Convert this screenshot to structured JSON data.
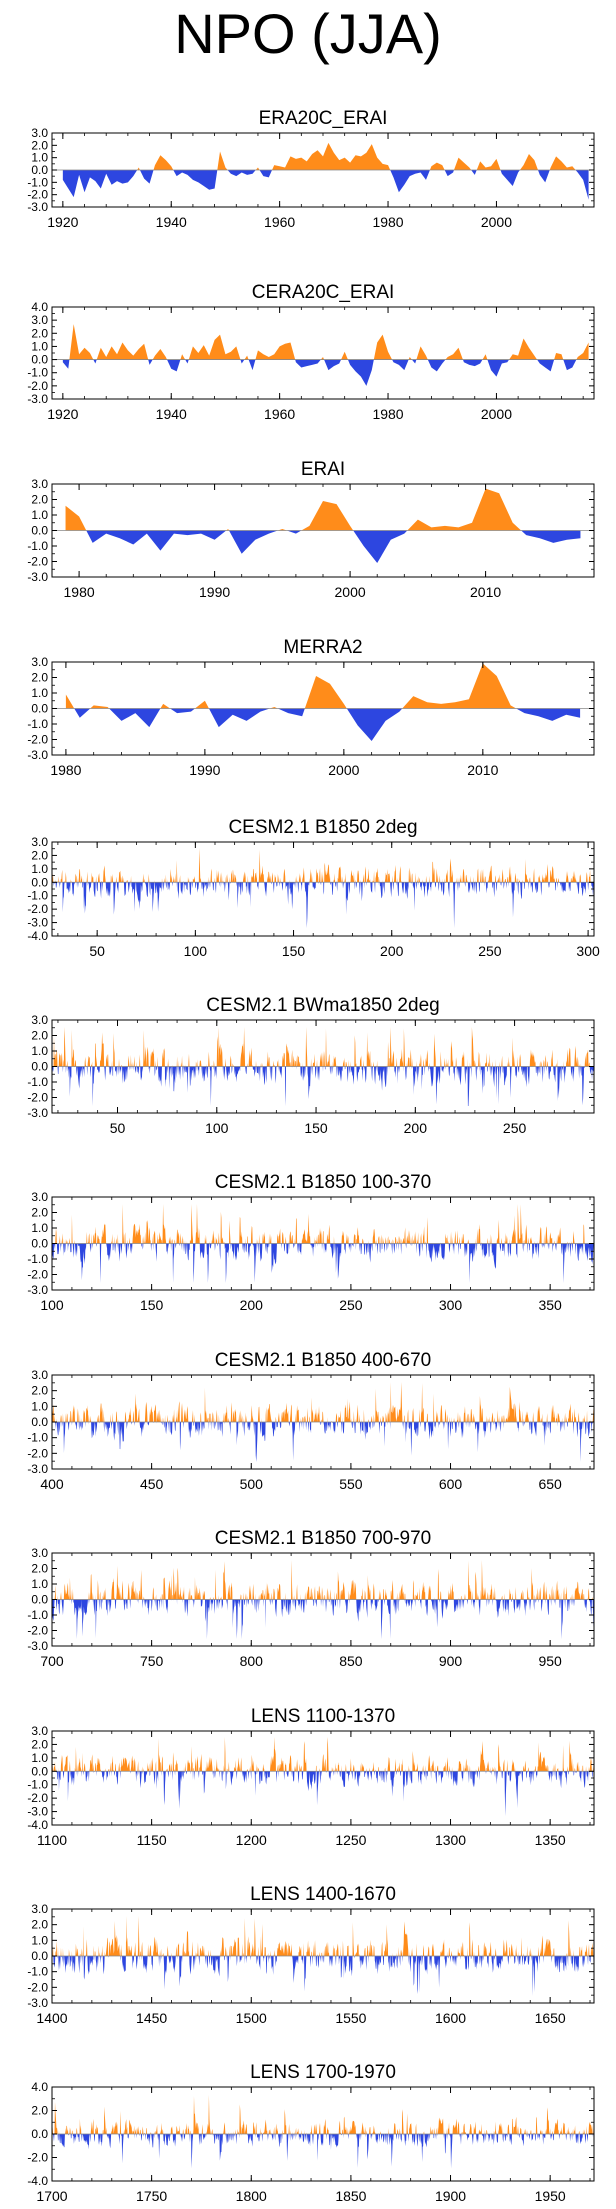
{
  "title": "NPO (JJA)",
  "colors": {
    "positive": "#ff8c1a",
    "negative": "#2d46e0",
    "axis": "#000000"
  },
  "chart_data": [
    {
      "type": "area",
      "title": "ERA20C_ERAI",
      "xlim": [
        1918,
        2018
      ],
      "ylim": [
        -3.0,
        3.0
      ],
      "xticks": [
        1920,
        1940,
        1960,
        1980,
        2000
      ],
      "yticks": [
        "3.0",
        "2.0",
        "1.0",
        "0.0",
        "-1.0",
        "-2.0",
        "-3.0"
      ],
      "series_style": "annual",
      "x": [
        1920,
        1921,
        1922,
        1923,
        1924,
        1925,
        1926,
        1927,
        1928,
        1929,
        1930,
        1931,
        1932,
        1933,
        1934,
        1935,
        1936,
        1937,
        1938,
        1939,
        1940,
        1941,
        1942,
        1943,
        1944,
        1945,
        1946,
        1947,
        1948,
        1949,
        1950,
        1951,
        1952,
        1953,
        1954,
        1955,
        1956,
        1957,
        1958,
        1959,
        1960,
        1961,
        1962,
        1963,
        1964,
        1965,
        1966,
        1967,
        1968,
        1969,
        1970,
        1971,
        1972,
        1973,
        1974,
        1975,
        1976,
        1977,
        1978,
        1979,
        1980,
        1981,
        1982,
        1983,
        1984,
        1985,
        1986,
        1987,
        1988,
        1989,
        1990,
        1991,
        1992,
        1993,
        1994,
        1995,
        1996,
        1997,
        1998,
        1999,
        2000,
        2001,
        2002,
        2003,
        2004,
        2005,
        2006,
        2007,
        2008,
        2009,
        2010,
        2011,
        2012,
        2013,
        2014,
        2015,
        2016,
        2017
      ],
      "values": [
        -0.8,
        -1.5,
        -2.2,
        -0.4,
        -1.8,
        -0.6,
        -0.9,
        -1.5,
        -0.3,
        -1.2,
        -0.9,
        -1.1,
        -1.0,
        -0.5,
        0.2,
        -0.7,
        -1.1,
        0.4,
        1.2,
        0.8,
        0.3,
        -0.5,
        -0.2,
        -0.4,
        -0.8,
        -1.0,
        -1.3,
        -1.6,
        -1.5,
        1.5,
        0.2,
        -0.3,
        -0.5,
        -0.2,
        -0.4,
        -0.3,
        0.2,
        -0.5,
        -0.6,
        0.4,
        0.3,
        0.2,
        1.1,
        0.9,
        1.0,
        0.7,
        1.3,
        1.6,
        1.1,
        2.2,
        1.4,
        0.8,
        1.0,
        0.6,
        1.2,
        1.1,
        1.4,
        2.1,
        1.0,
        0.5,
        0.4,
        -0.6,
        -1.8,
        -1.2,
        -0.5,
        -0.3,
        -0.2,
        -0.8,
        0.3,
        0.6,
        0.4,
        -0.5,
        -0.2,
        1.0,
        0.6,
        0.2,
        -0.4,
        0.7,
        0.2,
        0.3,
        0.9,
        -0.3,
        -0.8,
        -1.3,
        -0.2,
        0.4,
        1.3,
        0.8,
        -0.4,
        -1.0,
        0.2,
        1.1,
        0.7,
        0.2,
        0.3,
        -0.2,
        -0.8,
        -2.4
      ]
    },
    {
      "type": "area",
      "title": "CERA20C_ERAI",
      "xlim": [
        1918,
        2018
      ],
      "ylim": [
        -3.0,
        4.0
      ],
      "xticks": [
        1920,
        1940,
        1960,
        1980,
        2000
      ],
      "yticks": [
        "4.0",
        "3.0",
        "2.0",
        "1.0",
        "0.0",
        "-1.0",
        "-2.0",
        "-3.0"
      ],
      "series_style": "annual",
      "x": [
        1920,
        1921,
        1922,
        1923,
        1924,
        1925,
        1926,
        1927,
        1928,
        1929,
        1930,
        1931,
        1932,
        1933,
        1934,
        1935,
        1936,
        1937,
        1938,
        1939,
        1940,
        1941,
        1942,
        1943,
        1944,
        1945,
        1946,
        1947,
        1948,
        1949,
        1950,
        1951,
        1952,
        1953,
        1954,
        1955,
        1956,
        1957,
        1958,
        1959,
        1960,
        1961,
        1962,
        1963,
        1964,
        1965,
        1966,
        1967,
        1968,
        1969,
        1970,
        1971,
        1972,
        1973,
        1974,
        1975,
        1976,
        1977,
        1978,
        1979,
        1980,
        1981,
        1982,
        1983,
        1984,
        1985,
        1986,
        1987,
        1988,
        1989,
        1990,
        1991,
        1992,
        1993,
        1994,
        1995,
        1996,
        1997,
        1998,
        1999,
        2000,
        2001,
        2002,
        2003,
        2004,
        2005,
        2006,
        2007,
        2008,
        2009,
        2010,
        2011,
        2012,
        2013,
        2014,
        2015,
        2016,
        2017
      ],
      "values": [
        -0.2,
        -0.7,
        2.7,
        0.4,
        0.9,
        0.5,
        -0.3,
        0.9,
        0.2,
        1.0,
        0.4,
        1.3,
        0.7,
        0.3,
        0.8,
        1.2,
        -0.4,
        0.3,
        0.8,
        0.2,
        -0.7,
        -0.9,
        0.4,
        -0.3,
        1.0,
        0.5,
        1.1,
        0.3,
        1.5,
        1.9,
        0.4,
        0.6,
        1.0,
        -0.3,
        0.3,
        -0.8,
        0.7,
        0.4,
        0.2,
        0.4,
        1.0,
        1.2,
        1.3,
        -0.2,
        -0.6,
        -0.5,
        -0.4,
        -0.3,
        0.2,
        -0.8,
        -0.5,
        -0.3,
        0.6,
        -0.4,
        -0.9,
        -1.3,
        -2.0,
        -0.8,
        1.3,
        1.9,
        0.6,
        -0.2,
        -0.4,
        -0.8,
        0.2,
        -0.3,
        1.0,
        0.3,
        -0.6,
        -0.9,
        -0.3,
        0.2,
        0.4,
        0.9,
        -0.2,
        -0.4,
        -0.5,
        -0.3,
        0.4,
        -0.8,
        -1.3,
        -0.3,
        -0.2,
        0.4,
        0.3,
        1.6,
        0.9,
        0.3,
        -0.3,
        -0.6,
        -0.9,
        0.5,
        0.4,
        -0.8,
        -0.6,
        0.2,
        0.5,
        1.3
      ]
    },
    {
      "type": "area",
      "title": "ERAI",
      "xlim": [
        1978,
        2018
      ],
      "ylim": [
        -3.0,
        3.0
      ],
      "xticks": [
        1980,
        1990,
        2000,
        2010
      ],
      "yticks": [
        "3.0",
        "2.0",
        "1.0",
        "0.0",
        "-1.0",
        "-2.0",
        "-3.0"
      ],
      "series_style": "smooth",
      "x": [
        1979,
        1980,
        1981,
        1982,
        1983,
        1984,
        1985,
        1986,
        1987,
        1988,
        1989,
        1990,
        1991,
        1992,
        1993,
        1994,
        1995,
        1996,
        1997,
        1998,
        1999,
        2000,
        2001,
        2002,
        2003,
        2004,
        2005,
        2006,
        2007,
        2008,
        2009,
        2010,
        2011,
        2012,
        2013,
        2014,
        2015,
        2016,
        2017
      ],
      "values": [
        1.6,
        0.9,
        -0.8,
        -0.2,
        -0.5,
        -0.9,
        -0.2,
        -1.3,
        -0.2,
        -0.3,
        -0.2,
        -0.6,
        0.1,
        -1.5,
        -0.6,
        -0.2,
        0.1,
        -0.2,
        0.3,
        1.9,
        1.7,
        0.3,
        -1.0,
        -2.1,
        -0.6,
        -0.2,
        0.7,
        0.2,
        0.3,
        0.2,
        0.5,
        2.7,
        2.4,
        0.5,
        -0.3,
        -0.5,
        -0.8,
        -0.6,
        -0.5
      ]
    },
    {
      "type": "area",
      "title": "MERRA2",
      "xlim": [
        1979,
        2018
      ],
      "ylim": [
        -3.0,
        3.0
      ],
      "xticks": [
        1980,
        1990,
        2000,
        2010
      ],
      "yticks": [
        "3.0",
        "2.0",
        "1.0",
        "0.0",
        "-1.0",
        "-2.0",
        "-3.0"
      ],
      "series_style": "smooth",
      "x": [
        1980,
        1981,
        1982,
        1983,
        1984,
        1985,
        1986,
        1987,
        1988,
        1989,
        1990,
        1991,
        1992,
        1993,
        1994,
        1995,
        1996,
        1997,
        1998,
        1999,
        2000,
        2001,
        2002,
        2003,
        2004,
        2005,
        2006,
        2007,
        2008,
        2009,
        2010,
        2011,
        2012,
        2013,
        2014,
        2015,
        2016,
        2017
      ],
      "values": [
        0.9,
        -0.6,
        0.2,
        0.1,
        -0.8,
        -0.3,
        -1.2,
        0.3,
        -0.3,
        -0.2,
        0.5,
        -1.2,
        -0.4,
        -0.8,
        -0.2,
        0.1,
        -0.3,
        -0.5,
        2.1,
        1.6,
        0.3,
        -1.1,
        -2.1,
        -0.8,
        -0.2,
        0.8,
        0.4,
        0.3,
        0.4,
        0.6,
        2.9,
        2.1,
        0.2,
        -0.3,
        -0.5,
        -0.8,
        -0.4,
        -0.6
      ]
    },
    {
      "type": "area",
      "title": "CESM2.1 B1850 2deg",
      "xlim": [
        27,
        303
      ],
      "ylim": [
        -4.0,
        3.0
      ],
      "xticks": [
        50,
        100,
        150,
        200,
        250,
        300
      ],
      "yticks": [
        "3.0",
        "2.0",
        "1.0",
        "0.0",
        "-1.0",
        "-2.0",
        "-3.0",
        "-4.0"
      ],
      "series_style": "spiky",
      "seed": 11
    },
    {
      "type": "area",
      "title": "CESM2.1 BWma1850 2deg",
      "xlim": [
        17,
        290
      ],
      "ylim": [
        -3.0,
        3.0
      ],
      "xticks": [
        50,
        100,
        150,
        200,
        250
      ],
      "yticks": [
        "3.0",
        "2.0",
        "1.0",
        "0.0",
        "-1.0",
        "-2.0",
        "-3.0"
      ],
      "series_style": "spiky",
      "seed": 23
    },
    {
      "type": "area",
      "title": "CESM2.1 B1850 100-370",
      "xlim": [
        100,
        372
      ],
      "ylim": [
        -3.0,
        3.0
      ],
      "xticks": [
        100,
        150,
        200,
        250,
        300,
        350
      ],
      "yticks": [
        "3.0",
        "2.0",
        "1.0",
        "0.0",
        "-1.0",
        "-2.0",
        "-3.0"
      ],
      "series_style": "spiky",
      "seed": 37
    },
    {
      "type": "area",
      "title": "CESM2.1 B1850 400-670",
      "xlim": [
        400,
        672
      ],
      "ylim": [
        -3.0,
        3.0
      ],
      "xticks": [
        400,
        450,
        500,
        550,
        600,
        650
      ],
      "yticks": [
        "3.0",
        "2.0",
        "1.0",
        "0.0",
        "-1.0",
        "-2.0",
        "-3.0"
      ],
      "series_style": "spiky",
      "seed": 41
    },
    {
      "type": "area",
      "title": "CESM2.1 B1850 700-970",
      "xlim": [
        700,
        972
      ],
      "ylim": [
        -3.0,
        3.0
      ],
      "xticks": [
        700,
        750,
        800,
        850,
        900,
        950
      ],
      "yticks": [
        "3.0",
        "2.0",
        "1.0",
        "0.0",
        "-1.0",
        "-2.0",
        "-3.0"
      ],
      "series_style": "spiky",
      "seed": 53
    },
    {
      "type": "area",
      "title": "LENS 1100-1370",
      "xlim": [
        1100,
        1372
      ],
      "ylim": [
        -4.0,
        3.0
      ],
      "xticks": [
        1100,
        1150,
        1200,
        1250,
        1300,
        1350
      ],
      "yticks": [
        "3.0",
        "2.0",
        "1.0",
        "0.0",
        "-1.0",
        "-2.0",
        "-3.0",
        "-4.0"
      ],
      "series_style": "spiky",
      "seed": 67
    },
    {
      "type": "area",
      "title": "LENS 1400-1670",
      "xlim": [
        1400,
        1672
      ],
      "ylim": [
        -3.0,
        3.0
      ],
      "xticks": [
        1400,
        1450,
        1500,
        1550,
        1600,
        1650
      ],
      "yticks": [
        "3.0",
        "2.0",
        "1.0",
        "0.0",
        "-1.0",
        "-2.0",
        "-3.0"
      ],
      "series_style": "spiky",
      "seed": 79
    },
    {
      "type": "area",
      "title": "LENS 1700-1970",
      "xlim": [
        1700,
        1972
      ],
      "ylim": [
        -4.0,
        4.0
      ],
      "xticks": [
        1700,
        1750,
        1800,
        1850,
        1900,
        1950
      ],
      "yticks": [
        "4.0",
        "2.0",
        "0.0",
        "-2.0",
        "-4.0"
      ],
      "series_style": "spiky",
      "seed": 97
    }
  ]
}
